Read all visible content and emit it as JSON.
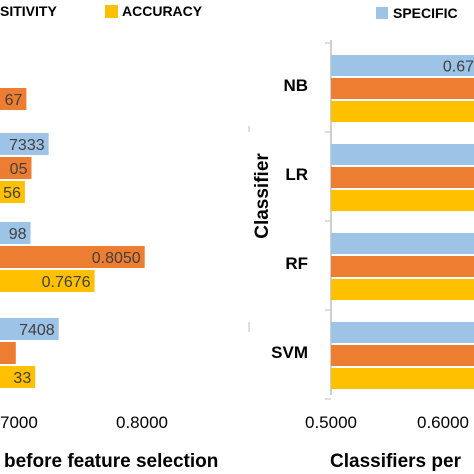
{
  "colors": {
    "specificity": "#9DC3E6",
    "sensitivity": "#ED7D31",
    "accuracy": "#FFC000",
    "axis": "#BFBFBF",
    "text": "#000000",
    "label_text": "#404040"
  },
  "chart_data": [
    {
      "type": "bar",
      "orientation": "horizontal",
      "xlabel": "before feature selection",
      "visible_ticks": [
        "7000",
        "0.8000"
      ],
      "legend": [
        "SITIVITY",
        "ACCURACY"
      ],
      "groups": [
        {
          "label": "NB",
          "bars": [
            {
              "series": "SPECIFICITY",
              "value": 0.6,
              "label": ""
            },
            {
              "series": "SENSITIVITY",
              "value": 0.7167,
              "label": "67"
            },
            {
              "series": "ACCURACY",
              "value": 0.6,
              "label": ""
            }
          ]
        },
        {
          "label": "LR",
          "bars": [
            {
              "series": "SPECIFICITY",
              "value": 0.7333,
              "label": "7333"
            },
            {
              "series": "SENSITIVITY",
              "value": 0.7205,
              "label": "05"
            },
            {
              "series": "ACCURACY",
              "value": 0.7156,
              "label": "56"
            }
          ]
        },
        {
          "label": "RF",
          "bars": [
            {
              "series": "SPECIFICITY",
              "value": 0.7198,
              "label": "98"
            },
            {
              "series": "SENSITIVITY",
              "value": 0.805,
              "label": "0.8050"
            },
            {
              "series": "ACCURACY",
              "value": 0.7676,
              "label": "0.7676"
            }
          ]
        },
        {
          "label": "SVM",
          "bars": [
            {
              "series": "SPECIFICITY",
              "value": 0.7408,
              "label": "7408"
            },
            {
              "series": "SENSITIVITY",
              "value": 0.7088,
              "label": ""
            },
            {
              "series": "ACCURACY",
              "value": 0.7233,
              "label": "33"
            }
          ]
        }
      ]
    },
    {
      "type": "bar",
      "orientation": "horizontal",
      "ylabel": "Classifier",
      "xlabel": "Classifiers per",
      "xticks": [
        0.5,
        0.6
      ],
      "xtick_labels": [
        "0.5000",
        "0.6000"
      ],
      "legend": [
        "SPECIFIC"
      ],
      "categories": [
        "NB",
        "LR",
        "RF",
        "SVM"
      ],
      "series": [
        {
          "name": "SPECIFICITY",
          "values": [
            0.8,
            0.8,
            0.8,
            0.8
          ],
          "labels": [
            "0.67",
            "",
            "",
            ""
          ]
        },
        {
          "name": "SENSITIVITY",
          "values": [
            0.8,
            0.8,
            0.8,
            0.8
          ],
          "labels": [
            "",
            "",
            "",
            ""
          ]
        },
        {
          "name": "ACCURACY",
          "values": [
            0.8,
            0.8,
            0.8,
            0.8
          ],
          "labels": [
            "",
            "",
            "",
            ""
          ]
        }
      ]
    }
  ]
}
